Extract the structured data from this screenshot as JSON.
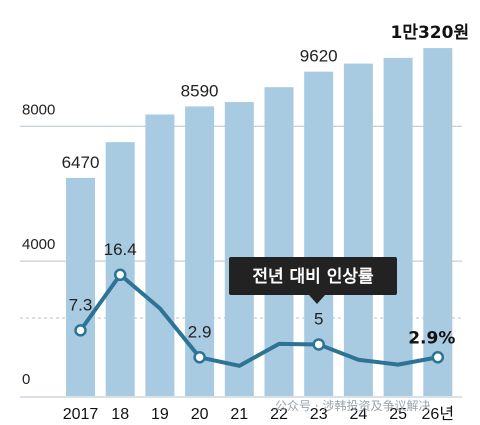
{
  "chart_data": {
    "type": "bar+line",
    "categories": [
      "2017",
      "18",
      "19",
      "20",
      "21",
      "22",
      "23",
      "24",
      "25",
      "26년"
    ],
    "bar_series": {
      "values": [
        6470,
        7530,
        8350,
        8590,
        8720,
        9160,
        9620,
        9860,
        10030,
        10320
      ],
      "labels": [
        "6470",
        "",
        "",
        "8590",
        "",
        "",
        "9620",
        "",
        "",
        "1만320원"
      ]
    },
    "line_series": {
      "name": "전년 대비 인상률",
      "values": [
        7.3,
        16.4,
        10.9,
        2.9,
        1.5,
        5.1,
        5,
        2.5,
        1.7,
        2.9
      ],
      "labels": [
        "7.3",
        "16.4",
        "",
        "2.9",
        "",
        "",
        "5",
        "",
        "",
        "2.9%"
      ]
    },
    "y_ticks": [
      "0",
      "4000",
      "8000"
    ],
    "ylim": [
      0,
      10500
    ],
    "grid": true,
    "colors": {
      "bar": "#a8cbe2",
      "line": "#2d7394",
      "legend_bg": "#222222"
    }
  },
  "watermark": "公众号 · 涉韩投资及争议解决"
}
